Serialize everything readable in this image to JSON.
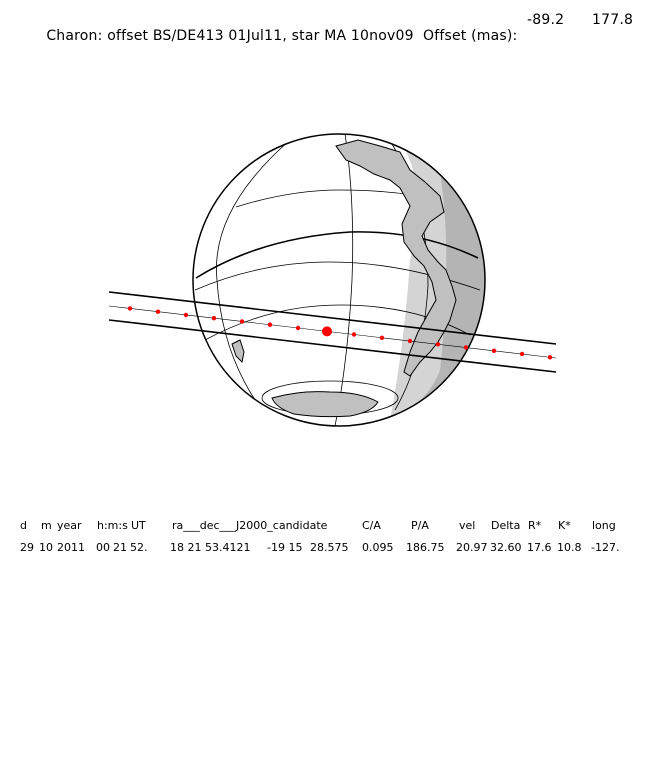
{
  "header": {
    "title": "Charon: offset BS/DE413 01Jul11, star MA 10nov09  Offset (mas):",
    "offset_ra": "-89.2",
    "offset_dec": "177.8"
  },
  "table": {
    "headers": [
      "d",
      "m",
      "year",
      "h:m:s",
      "UT",
      "ra___dec___J2000_candidate",
      "C/A",
      "P/A",
      "vel",
      "Delta",
      "R*",
      "K*",
      "long"
    ],
    "values": [
      "29",
      "10",
      "2011",
      "00",
      "21",
      "52.",
      "18 21 53.4121",
      "-19 15",
      "28.575",
      "0.095",
      "186.75",
      "20.97",
      "32.60",
      "17.6",
      "10.8",
      "-127."
    ]
  },
  "colors": {
    "shadow_line": "#000000",
    "center_line": "#000000",
    "track_dot": "#ff0000",
    "night_side": "#b4b4b4",
    "twilight": "#d4d4d4",
    "land_outline": "#000000"
  }
}
